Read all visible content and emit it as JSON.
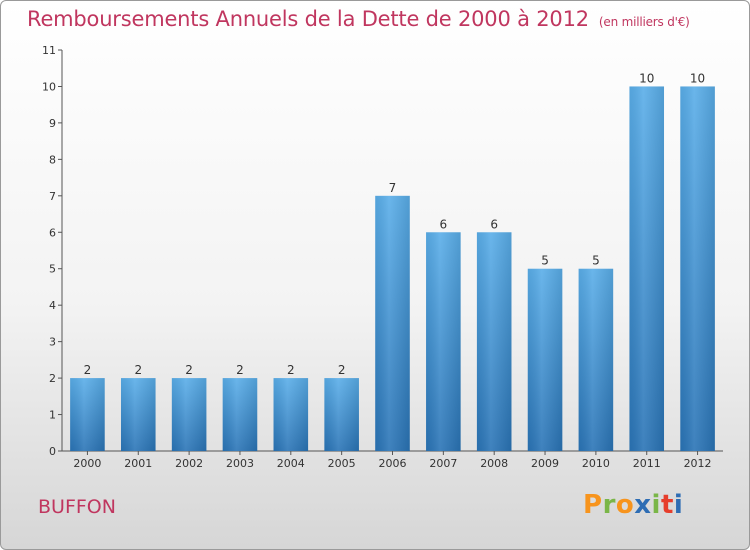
{
  "header": {
    "title": "Remboursements Annuels de la Dette de 2000 à 2012",
    "subtitle": "(en milliers d'€)"
  },
  "footer": {
    "commune": "BUFFON",
    "brand": "Proxiti",
    "brand_colors": [
      "#f7941d",
      "#7ab648",
      "#f7941d",
      "#2e6db4",
      "#7ab648",
      "#e63e2c",
      "#2e6db4"
    ]
  },
  "chart_data": {
    "type": "bar",
    "title": "Remboursements Annuels de la Dette de 2000 à 2012",
    "subtitle": "(en milliers d'€)",
    "categories": [
      "2000",
      "2001",
      "2002",
      "2003",
      "2004",
      "2005",
      "2006",
      "2007",
      "2008",
      "2009",
      "2010",
      "2011",
      "2012"
    ],
    "values": [
      2,
      2,
      2,
      2,
      2,
      2,
      7,
      6,
      6,
      5,
      5,
      10,
      10
    ],
    "ylim": [
      0,
      11
    ],
    "yticks": [
      "0",
      "1",
      "2",
      "3",
      "4",
      "5",
      "6",
      "7",
      "8",
      "9",
      "10",
      "11"
    ],
    "xlabel": "",
    "ylabel": "",
    "grid": false,
    "bar_color_top": "#5aaee9",
    "bar_color_bottom": "#2a74b6"
  }
}
